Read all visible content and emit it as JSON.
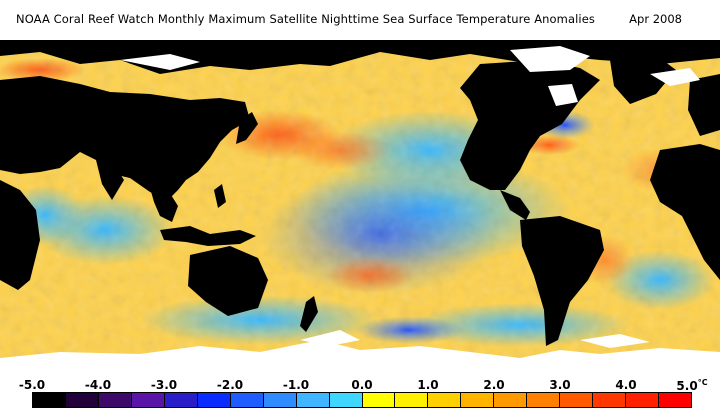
{
  "header": {
    "title": "NOAA Coral Reef Watch Monthly Maximum Satellite Nighttime Sea Surface Temperature Anomalies",
    "date": "Apr 2008"
  },
  "legend": {
    "ticks": [
      "-5.0",
      "-4.0",
      "-3.0",
      "-2.0",
      "-1.0",
      "0.0",
      "1.0",
      "2.0",
      "3.0",
      "4.0",
      "5.0"
    ],
    "unit": "°C",
    "colors": [
      "#000000",
      "#22003a",
      "#3d0a6a",
      "#5a15a8",
      "#2a1ec9",
      "#0b2cff",
      "#1f5dff",
      "#2f8cff",
      "#3fb6ff",
      "#3fd6ff",
      "#ffff00",
      "#fff000",
      "#ffd000",
      "#ffb400",
      "#ff9900",
      "#ff8000",
      "#ff5a00",
      "#ff3800",
      "#ff2000",
      "#ff0000"
    ]
  },
  "map_colors": {
    "ocean_warm": "#ffd24a",
    "ocean_cool": "#3fa7ff",
    "land": "#000000",
    "ice": "#ffffff"
  }
}
